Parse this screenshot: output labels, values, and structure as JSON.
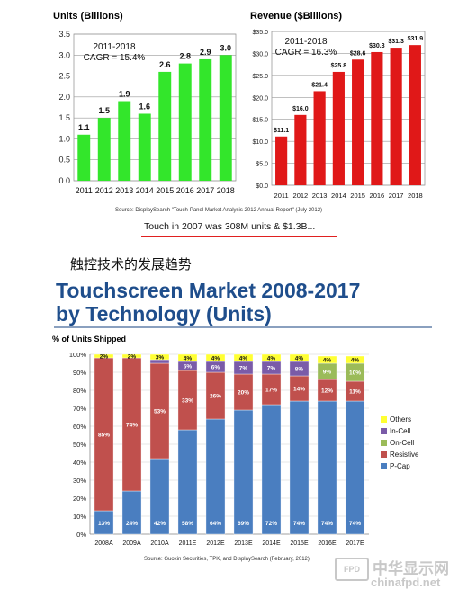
{
  "colors": {
    "green": "#33e62b",
    "red": "#e01818",
    "pcap": "#4a7ec0",
    "resistive": "#c0504d",
    "oncell": "#9bbb59",
    "incell": "#7a5ba8",
    "others": "#ffff33",
    "title_blue": "#1f4e8c",
    "underline_red": "#e02020"
  },
  "source_caption": "Source: DisplaySearch \"Touch-Panel Market Analysis 2012 Annual Report\" (July 2012)",
  "touch_note": "Touch in 2007 was 308M units & $1.3B...",
  "cn_heading": "触控技术的发展趋势",
  "main_title": [
    "Touchscreen Market 2008-2017",
    "by Technology (Units)"
  ],
  "source2": "Source: Guoxin Securities, TPK, and DisplaySearch (February, 2012)",
  "watermark": {
    "logo": "FPD",
    "cn": "中华显示网",
    "url": "chinafpd.net"
  },
  "chart_data": [
    {
      "type": "bar",
      "title": "Units (Billions)",
      "categories": [
        "2011",
        "2012",
        "2013",
        "2014",
        "2015",
        "2016",
        "2017",
        "2018"
      ],
      "values": [
        1.1,
        1.5,
        1.9,
        1.6,
        2.6,
        2.8,
        2.9,
        3.0
      ],
      "labels": [
        "1.1",
        "1.5",
        "1.9",
        "1.6",
        "2.6",
        "2.8",
        "2.9",
        "3.0"
      ],
      "yticks": [
        "0.0",
        "0.5",
        "1.0",
        "1.5",
        "2.0",
        "2.5",
        "3.0",
        "3.5"
      ],
      "ylim": [
        0,
        3.5
      ],
      "annotation": [
        "2011-2018",
        "CAGR = 15.4%"
      ],
      "grid": true
    },
    {
      "type": "bar",
      "title": "Revenue ($Billions)",
      "categories": [
        "2011",
        "2012",
        "2013",
        "2014",
        "2015",
        "2016",
        "2017",
        "2018"
      ],
      "values": [
        11.1,
        16.0,
        21.4,
        25.8,
        28.6,
        30.3,
        31.3,
        31.9
      ],
      "labels": [
        "$11.1",
        "$16.0",
        "$21.4",
        "$25.8",
        "$28.6",
        "$30.3",
        "$31.3",
        "$31.9"
      ],
      "yticks": [
        "$0.0",
        "$5.0",
        "$10.0",
        "$15.0",
        "$20.0",
        "$25.0",
        "$30.0",
        "$35.0"
      ],
      "ylim": [
        0,
        35
      ],
      "annotation": [
        "2011-2018",
        "CAGR = 16.3%"
      ],
      "grid": true
    },
    {
      "type": "bar",
      "stacked": true,
      "title": "% of Units Shipped",
      "categories": [
        "2008A",
        "2009A",
        "2010A",
        "2011E",
        "2012E",
        "2013E",
        "2014E",
        "2015E",
        "2016E",
        "2017E"
      ],
      "yticks": [
        "0%",
        "10%",
        "20%",
        "30%",
        "40%",
        "50%",
        "60%",
        "70%",
        "80%",
        "90%",
        "100%"
      ],
      "ylim": [
        0,
        100
      ],
      "series": [
        {
          "name": "P-Cap",
          "values": [
            13,
            24,
            42,
            58,
            64,
            69,
            72,
            74,
            74,
            74
          ],
          "labels": [
            "13%",
            "24%",
            "42%",
            "58%",
            "64%",
            "69%",
            "72%",
            "74%",
            "74%",
            "74%"
          ]
        },
        {
          "name": "Resistive",
          "values": [
            85,
            74,
            53,
            33,
            26,
            20,
            17,
            14,
            12,
            11
          ],
          "labels": [
            "85%",
            "74%",
            "53%",
            "33%",
            "26%",
            "20%",
            "17%",
            "14%",
            "12%",
            "11%"
          ]
        },
        {
          "name": "On-Cell",
          "values": [
            0,
            0,
            0,
            0,
            0,
            0,
            0,
            0,
            9,
            10
          ],
          "labels": [
            "",
            "",
            "",
            "",
            "",
            "",
            "",
            "",
            "9%",
            "10%"
          ]
        },
        {
          "name": "In-Cell",
          "values": [
            0,
            0,
            2,
            5,
            6,
            7,
            7,
            8,
            0,
            0
          ],
          "labels": [
            "",
            "",
            "",
            "5%",
            "6%",
            "7%",
            "7%",
            "8%",
            "",
            ""
          ]
        },
        {
          "name": "Others",
          "values": [
            2,
            2,
            3,
            4,
            4,
            4,
            4,
            4,
            4,
            4
          ],
          "labels": [
            "2%",
            "2%",
            "3%",
            "4%",
            "4%",
            "4%",
            "4%",
            "4%",
            "4%",
            "4%"
          ]
        }
      ],
      "legend": [
        "Others",
        "In-Cell",
        "On-Cell",
        "Resistive",
        "P-Cap"
      ],
      "legend_position": "right"
    }
  ]
}
